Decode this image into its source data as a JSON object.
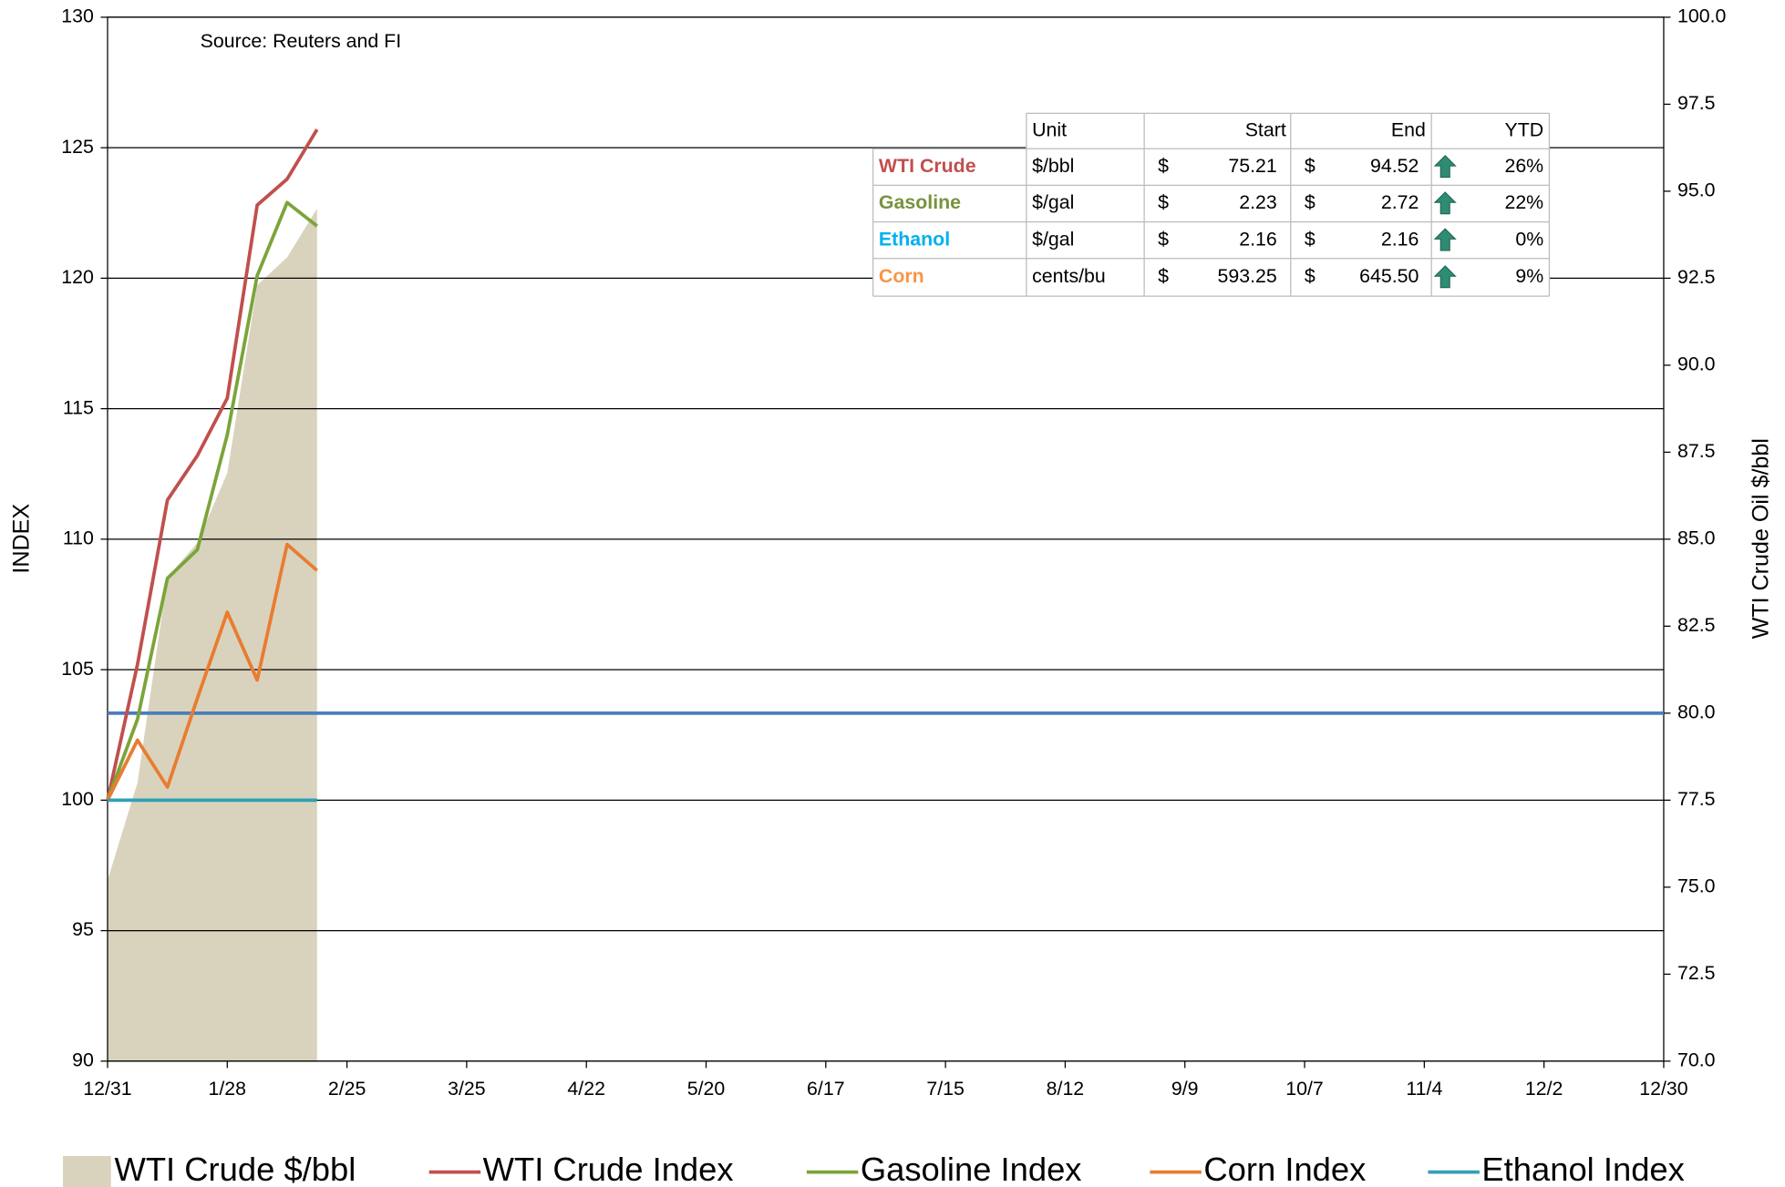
{
  "chart_data": {
    "type": "line",
    "annotation": "Source: Reuters and FI",
    "ylabel": "INDEX",
    "y2label": "WTI Crude Oil $/bbl",
    "categories": [
      "12/31",
      null,
      null,
      null,
      "1/28",
      null,
      null,
      null,
      "2/25",
      null,
      null,
      null,
      "3/25",
      null,
      null,
      null,
      "4/22",
      null,
      null,
      null,
      "5/20",
      null,
      null,
      null,
      "6/17",
      null,
      null,
      null,
      "7/15",
      null,
      null,
      null,
      "8/12",
      null,
      null,
      null,
      "9/9",
      null,
      null,
      null,
      "10/7",
      null,
      null,
      null,
      "11/4",
      null,
      null,
      null,
      "12/2",
      null,
      null,
      null,
      "12/30"
    ],
    "ylim": [
      90,
      130
    ],
    "yticks": [
      90,
      95,
      100,
      105,
      110,
      115,
      120,
      125,
      130
    ],
    "y2lim": [
      70,
      100
    ],
    "y2ticks": [
      {
        "value": 70,
        "label": "70.0"
      },
      {
        "value": 72.5,
        "label": "72.5"
      },
      {
        "value": 75,
        "label": "75.0"
      },
      {
        "value": 77.5,
        "label": "77.5"
      },
      {
        "value": 80,
        "label": "80.0"
      },
      {
        "value": 82.5,
        "label": "82.5"
      },
      {
        "value": 85,
        "label": "85.0"
      },
      {
        "value": 87.5,
        "label": "87.5"
      },
      {
        "value": 90,
        "label": "90.0"
      },
      {
        "value": 92.5,
        "label": "92.5"
      },
      {
        "value": 95,
        "label": "95.0"
      },
      {
        "value": 97.5,
        "label": "97.5"
      },
      {
        "value": 100,
        "label": "100.0"
      }
    ],
    "grid": true,
    "hline": {
      "axis": "y2",
      "value": 80,
      "color": "#4a7ebb"
    },
    "series": [
      {
        "name": "WTI Crude $/bbl",
        "type": "area",
        "axis": "y2",
        "color": "#d9d3bd",
        "values": [
          75.2,
          78.0,
          83.9,
          84.9,
          86.9,
          92.3,
          93.1,
          94.5,
          null,
          null,
          null,
          null,
          null,
          null,
          null,
          null,
          null,
          null,
          null,
          null,
          null,
          null,
          null,
          null,
          null,
          null,
          null,
          null,
          null,
          null,
          null,
          null,
          null,
          null,
          null,
          null,
          null,
          null,
          null,
          null,
          null,
          null,
          null,
          null,
          null,
          null,
          null,
          null,
          null,
          null,
          null,
          null,
          null
        ]
      },
      {
        "name": "WTI Crude Index",
        "type": "line",
        "color": "#c0504d",
        "values": [
          100,
          105.2,
          111.5,
          113.2,
          115.4,
          122.8,
          123.8,
          125.7,
          null,
          null,
          null,
          null,
          null,
          null,
          null,
          null,
          null,
          null,
          null,
          null,
          null,
          null,
          null,
          null,
          null,
          null,
          null,
          null,
          null,
          null,
          null,
          null,
          null,
          null,
          null,
          null,
          null,
          null,
          null,
          null,
          null,
          null,
          null,
          null,
          null,
          null,
          null,
          null,
          null,
          null,
          null,
          null,
          null
        ]
      },
      {
        "name": "Gasoline Index",
        "type": "line",
        "color": "#7ba43a",
        "values": [
          100,
          103.1,
          108.5,
          109.6,
          114.0,
          120.1,
          122.9,
          122.0,
          null,
          null,
          null,
          null,
          null,
          null,
          null,
          null,
          null,
          null,
          null,
          null,
          null,
          null,
          null,
          null,
          null,
          null,
          null,
          null,
          null,
          null,
          null,
          null,
          null,
          null,
          null,
          null,
          null,
          null,
          null,
          null,
          null,
          null,
          null,
          null,
          null,
          null,
          null,
          null,
          null,
          null,
          null,
          null,
          null
        ]
      },
      {
        "name": "Corn Index",
        "type": "line",
        "color": "#e97c30",
        "values": [
          100,
          102.3,
          100.5,
          103.9,
          107.2,
          104.6,
          109.8,
          108.8,
          null,
          null,
          null,
          null,
          null,
          null,
          null,
          null,
          null,
          null,
          null,
          null,
          null,
          null,
          null,
          null,
          null,
          null,
          null,
          null,
          null,
          null,
          null,
          null,
          null,
          null,
          null,
          null,
          null,
          null,
          null,
          null,
          null,
          null,
          null,
          null,
          null,
          null,
          null,
          null,
          null,
          null,
          null,
          null,
          null
        ]
      },
      {
        "name": "Ethanol Index",
        "type": "line",
        "color": "#31a0b5",
        "values": [
          100,
          100,
          100,
          100,
          100,
          100,
          100,
          100,
          null,
          null,
          null,
          null,
          null,
          null,
          null,
          null,
          null,
          null,
          null,
          null,
          null,
          null,
          null,
          null,
          null,
          null,
          null,
          null,
          null,
          null,
          null,
          null,
          null,
          null,
          null,
          null,
          null,
          null,
          null,
          null,
          null,
          null,
          null,
          null,
          null,
          null,
          null,
          null,
          null,
          null,
          null,
          null,
          null
        ]
      }
    ],
    "table": {
      "columns": [
        "Unit",
        "Start",
        "End",
        "YTD"
      ],
      "rows": [
        {
          "name": "WTI Crude",
          "color": "#c0504d",
          "unit": "$/bbl",
          "start_currency": "$",
          "start": "75.21",
          "end_currency": "$",
          "end": "94.52",
          "ytd": "26%"
        },
        {
          "name": "Gasoline",
          "color": "#77933c",
          "unit": "$/gal",
          "start_currency": "$",
          "start": "2.23",
          "end_currency": "$",
          "end": "2.72",
          "ytd": "22%"
        },
        {
          "name": "Ethanol",
          "color": "#00b0f0",
          "unit": "$/gal",
          "start_currency": "$",
          "start": "2.16",
          "end_currency": "$",
          "end": "2.16",
          "ytd": "0%"
        },
        {
          "name": "Corn",
          "color": "#f79646",
          "unit": "cents/bu",
          "start_currency": "$",
          "start": "593.25",
          "end_currency": "$",
          "end": "645.50",
          "ytd": "9%"
        }
      ]
    }
  }
}
